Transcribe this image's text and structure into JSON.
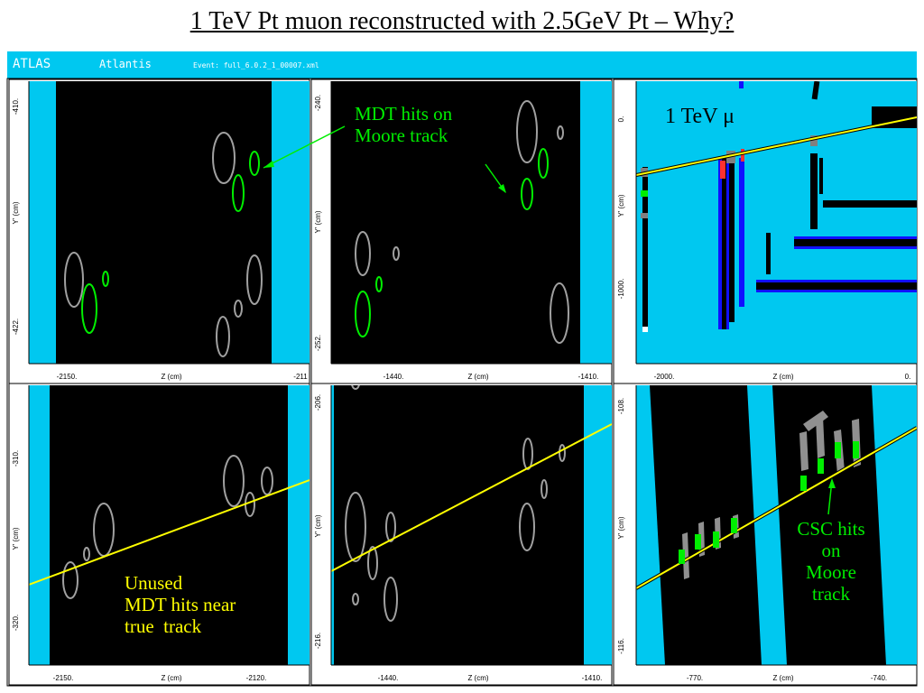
{
  "title": "1 TeV Pt muon reconstructed with 2.5GeV Pt – Why?",
  "atlantis_bar": {
    "logo": "ATLAS",
    "app": "Atlantis",
    "event": "Event: full_6.0.2_1_00007.xml"
  },
  "colors": {
    "accent": "#00c8f0",
    "track": "#ffff00",
    "hit_used": "#00ee00",
    "hit_unused": "#a0a0a0",
    "annotation_green": "#00ee00",
    "annotation_yellow": "#ffff00"
  },
  "panels": [
    {
      "ylabel": "Y' (cm)",
      "xlabel": "Z (cm)",
      "y_ticks": [
        "-410.",
        "-422."
      ],
      "x_ticks": [
        "-2150.",
        "-211"
      ]
    },
    {
      "ylabel": "Y' (cm)",
      "xlabel": "Z (cm)",
      "y_ticks": [
        "-240.",
        "-252."
      ],
      "x_ticks": [
        "-1440.",
        "-1410."
      ]
    },
    {
      "ylabel": "Y' (cm)",
      "xlabel": "Z (cm)",
      "y_ticks": [
        "0.",
        "-1000."
      ],
      "x_ticks": [
        "-2000.",
        "0."
      ]
    },
    {
      "ylabel": "Y' (cm)",
      "xlabel": "Z (cm)",
      "y_ticks": [
        "-310.",
        "-320."
      ],
      "x_ticks": [
        "-2150.",
        "-2120."
      ]
    },
    {
      "ylabel": "Y' (cm)",
      "xlabel": "Z (cm)",
      "y_ticks": [
        "-206.",
        "-216."
      ],
      "x_ticks": [
        "-1440.",
        "-1410."
      ]
    },
    {
      "ylabel": "Y' (cm)",
      "xlabel": "Z (cm)",
      "y_ticks": [
        "-108.",
        "-116."
      ],
      "x_ticks": [
        "-770.",
        "-740."
      ]
    }
  ],
  "annotations": {
    "mdt_hits": "MDT hits on\nMoore track",
    "tev": "1 TeV μ",
    "unused": "Unused\nMDT hits near\ntrue  track",
    "csc": "CSC hits\non\nMoore\ntrack"
  }
}
